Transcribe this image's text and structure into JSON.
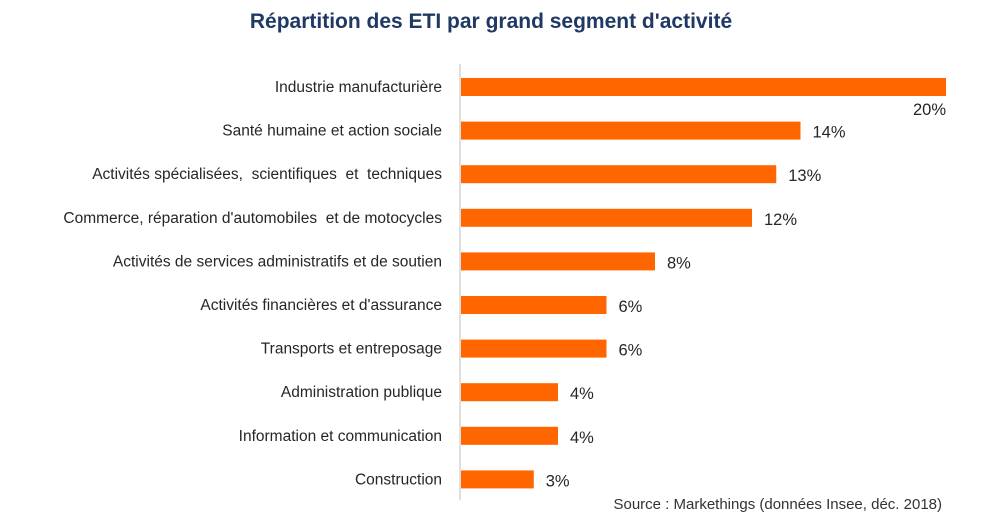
{
  "chart_data": {
    "type": "bar",
    "orientation": "horizontal",
    "title": "Répartition des ETI par grand segment d'activité",
    "categories": [
      "Industrie manufacturière",
      "Santé humaine et action sociale",
      "Activités spécialisées,  scientifiques  et  techniques",
      "Commerce, réparation d'automobiles  et de motocycles",
      "Activités de services administratifs et de soutien",
      "Activités financières et d'assurance",
      "Transports et entreposage",
      "Administration publique",
      "Information et communication",
      "Construction"
    ],
    "values": [
      20,
      14,
      13,
      12,
      8,
      6,
      6,
      4,
      4,
      3
    ],
    "value_labels": [
      "20%",
      "14%",
      "13%",
      "12%",
      "8%",
      "6%",
      "6%",
      "4%",
      "4%",
      "3%"
    ],
    "xlim": [
      0,
      20
    ],
    "unit": "%",
    "grid": false,
    "legend": "none",
    "bar_color": "#ff6600",
    "source": "Source : Markethings (données Insee, déc. 2018)"
  }
}
